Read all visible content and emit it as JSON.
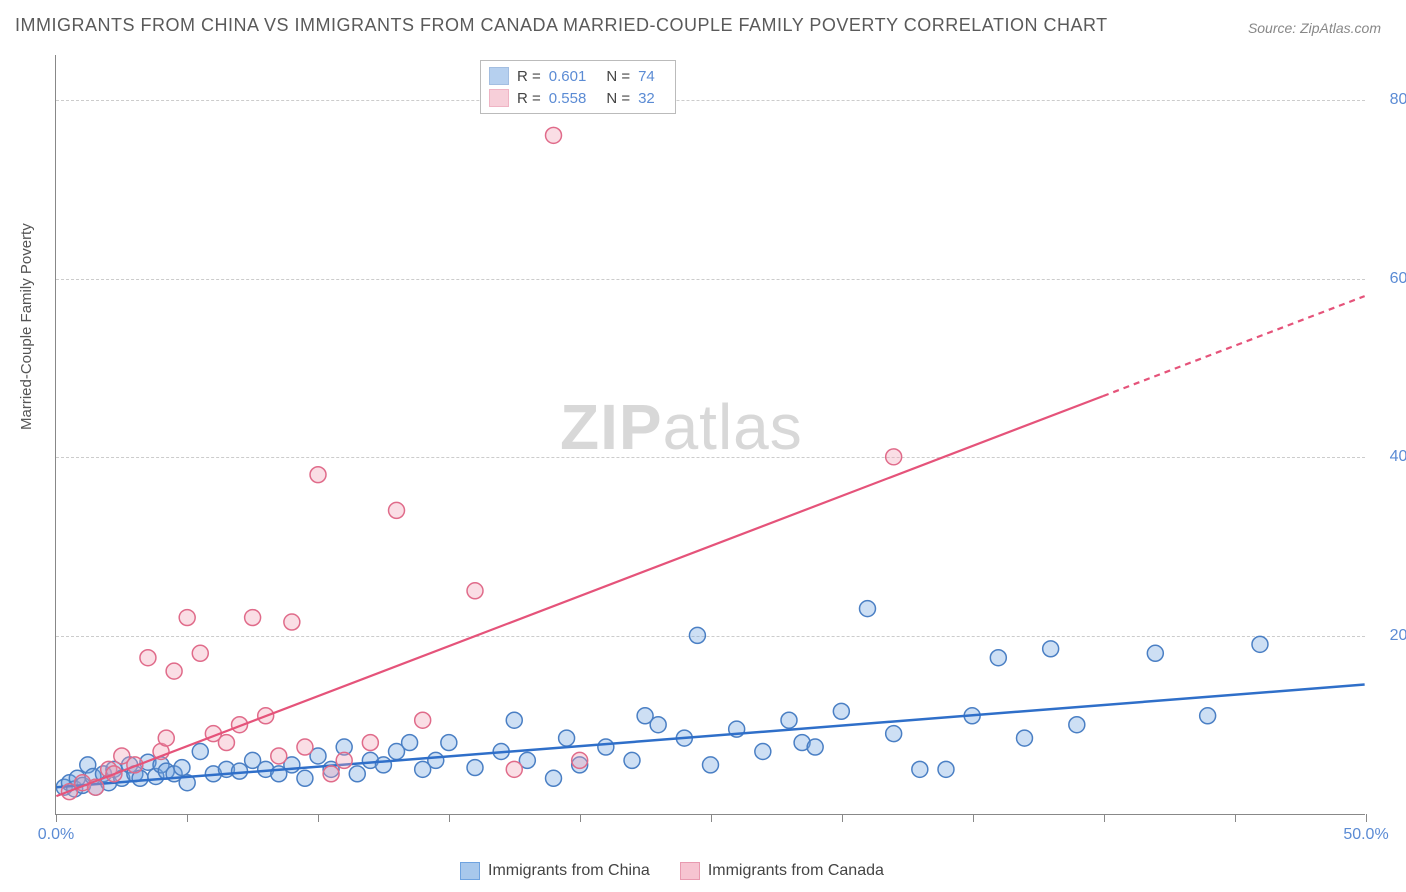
{
  "title": "IMMIGRANTS FROM CHINA VS IMMIGRANTS FROM CANADA MARRIED-COUPLE FAMILY POVERTY CORRELATION CHART",
  "source": "Source: ZipAtlas.com",
  "y_axis_title": "Married-Couple Family Poverty",
  "watermark_zip": "ZIP",
  "watermark_atlas": "atlas",
  "chart": {
    "type": "scatter",
    "xlim": [
      0,
      50
    ],
    "ylim": [
      0,
      85
    ],
    "x_ticks": [
      0,
      5,
      10,
      15,
      20,
      25,
      30,
      35,
      40,
      45,
      50
    ],
    "x_tick_labels": {
      "0": "0.0%",
      "50": "50.0%"
    },
    "y_gridlines": [
      20,
      40,
      60,
      80
    ],
    "y_tick_labels": {
      "20": "20.0%",
      "40": "40.0%",
      "60": "60.0%",
      "80": "80.0%"
    },
    "marker_radius": 8,
    "marker_stroke_width": 1.5,
    "marker_fill_opacity": 0.35,
    "grid_color": "#cccccc",
    "axis_color": "#888888",
    "background_color": "#ffffff",
    "series": [
      {
        "name": "Immigrants from China",
        "color": "#6fa3e0",
        "stroke": "#4a7fc4",
        "r_label": "R =",
        "r_value": "0.601",
        "n_label": "N =",
        "n_value": "74",
        "trend": {
          "x1": 0,
          "y1": 3.0,
          "x2": 50,
          "y2": 14.5,
          "dash_from_x": null,
          "color": "#2f6fc9",
          "width": 2.5
        },
        "points": [
          [
            0.3,
            3.0
          ],
          [
            0.5,
            3.5
          ],
          [
            0.7,
            2.8
          ],
          [
            0.8,
            4.0
          ],
          [
            1.0,
            3.2
          ],
          [
            1.2,
            5.5
          ],
          [
            1.4,
            4.2
          ],
          [
            1.5,
            3.0
          ],
          [
            1.8,
            4.5
          ],
          [
            2.0,
            3.5
          ],
          [
            2.2,
            5.0
          ],
          [
            2.5,
            4.0
          ],
          [
            2.8,
            5.5
          ],
          [
            3.0,
            4.5
          ],
          [
            3.2,
            4.0
          ],
          [
            3.5,
            5.8
          ],
          [
            3.8,
            4.2
          ],
          [
            4.0,
            5.5
          ],
          [
            4.2,
            4.8
          ],
          [
            4.5,
            4.5
          ],
          [
            4.8,
            5.2
          ],
          [
            5.0,
            3.5
          ],
          [
            5.5,
            7.0
          ],
          [
            6.0,
            4.5
          ],
          [
            6.5,
            5.0
          ],
          [
            7.0,
            4.8
          ],
          [
            7.5,
            6.0
          ],
          [
            8.0,
            5.0
          ],
          [
            8.5,
            4.5
          ],
          [
            9.0,
            5.5
          ],
          [
            9.5,
            4.0
          ],
          [
            10.0,
            6.5
          ],
          [
            10.5,
            5.0
          ],
          [
            11.0,
            7.5
          ],
          [
            11.5,
            4.5
          ],
          [
            12.0,
            6.0
          ],
          [
            12.5,
            5.5
          ],
          [
            13.0,
            7.0
          ],
          [
            13.5,
            8.0
          ],
          [
            14.0,
            5.0
          ],
          [
            14.5,
            6.0
          ],
          [
            15.0,
            8.0
          ],
          [
            16.0,
            5.2
          ],
          [
            17.0,
            7.0
          ],
          [
            17.5,
            10.5
          ],
          [
            18.0,
            6.0
          ],
          [
            19.0,
            4.0
          ],
          [
            19.5,
            8.5
          ],
          [
            20.0,
            5.5
          ],
          [
            21.0,
            7.5
          ],
          [
            22.0,
            6.0
          ],
          [
            22.5,
            11.0
          ],
          [
            23.0,
            10.0
          ],
          [
            24.0,
            8.5
          ],
          [
            24.5,
            20.0
          ],
          [
            25.0,
            5.5
          ],
          [
            26.0,
            9.5
          ],
          [
            27.0,
            7.0
          ],
          [
            28.0,
            10.5
          ],
          [
            28.5,
            8.0
          ],
          [
            29.0,
            7.5
          ],
          [
            30.0,
            11.5
          ],
          [
            31.0,
            23.0
          ],
          [
            32.0,
            9.0
          ],
          [
            33.0,
            5.0
          ],
          [
            34.0,
            5.0
          ],
          [
            35.0,
            11.0
          ],
          [
            36.0,
            17.5
          ],
          [
            37.0,
            8.5
          ],
          [
            38.0,
            18.5
          ],
          [
            39.0,
            10.0
          ],
          [
            42.0,
            18.0
          ],
          [
            44.0,
            11.0
          ],
          [
            46.0,
            19.0
          ]
        ]
      },
      {
        "name": "Immigrants from Canada",
        "color": "#f0a0b4",
        "stroke": "#e06b8a",
        "r_label": "R =",
        "r_value": "0.558",
        "n_label": "N =",
        "n_value": "32",
        "trend": {
          "x1": 0,
          "y1": 2.0,
          "x2": 50,
          "y2": 58.0,
          "dash_from_x": 40,
          "color": "#e5537a",
          "width": 2.2
        },
        "points": [
          [
            0.5,
            2.5
          ],
          [
            1.0,
            3.5
          ],
          [
            1.5,
            3.0
          ],
          [
            2.0,
            5.0
          ],
          [
            2.2,
            4.5
          ],
          [
            2.5,
            6.5
          ],
          [
            3.0,
            5.5
          ],
          [
            3.5,
            17.5
          ],
          [
            4.0,
            7.0
          ],
          [
            4.2,
            8.5
          ],
          [
            4.5,
            16.0
          ],
          [
            5.0,
            22.0
          ],
          [
            5.5,
            18.0
          ],
          [
            6.0,
            9.0
          ],
          [
            6.5,
            8.0
          ],
          [
            7.0,
            10.0
          ],
          [
            7.5,
            22.0
          ],
          [
            8.0,
            11.0
          ],
          [
            8.5,
            6.5
          ],
          [
            9.0,
            21.5
          ],
          [
            9.5,
            7.5
          ],
          [
            10.0,
            38.0
          ],
          [
            10.5,
            4.5
          ],
          [
            11.0,
            6.0
          ],
          [
            12.0,
            8.0
          ],
          [
            13.0,
            34.0
          ],
          [
            14.0,
            10.5
          ],
          [
            16.0,
            25.0
          ],
          [
            17.5,
            5.0
          ],
          [
            19.0,
            76.0
          ],
          [
            20.0,
            6.0
          ],
          [
            32.0,
            40.0
          ]
        ]
      }
    ],
    "legend_bottom": [
      {
        "label": "Immigrants from China",
        "fill": "#a8c8ec",
        "stroke": "#6fa3e0"
      },
      {
        "label": "Immigrants from Canada",
        "fill": "#f6c4d1",
        "stroke": "#e89ab0"
      }
    ]
  }
}
